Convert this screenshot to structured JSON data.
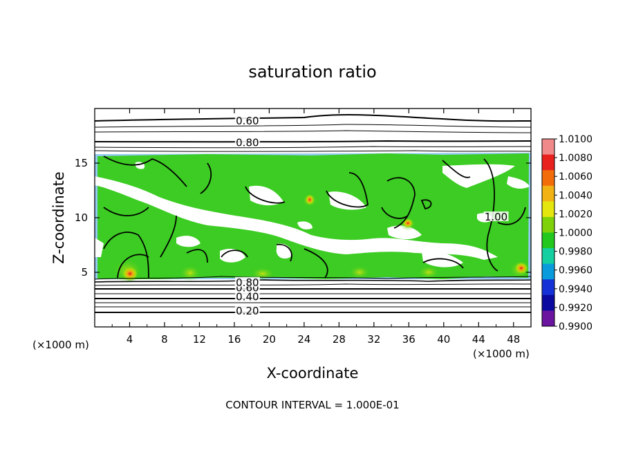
{
  "chart_data": {
    "type": "contour",
    "title": "saturation ratio",
    "xlabel": "X-coordinate",
    "ylabel": "Z-coordinate",
    "x_unit_left": "(×1000 m)",
    "x_unit_right": "(×1000 m)",
    "footer": "CONTOUR INTERVAL = 1.000E-01",
    "xlim": [
      0,
      50
    ],
    "ylim": [
      0,
      20
    ],
    "x_ticks": [
      {
        "value": 4,
        "label": "4"
      },
      {
        "value": 8,
        "label": "8"
      },
      {
        "value": 12,
        "label": "12"
      },
      {
        "value": 16,
        "label": "16"
      },
      {
        "value": 20,
        "label": "20"
      },
      {
        "value": 24,
        "label": "24"
      },
      {
        "value": 28,
        "label": "28"
      },
      {
        "value": 32,
        "label": "32"
      },
      {
        "value": 36,
        "label": "36"
      },
      {
        "value": 40,
        "label": "40"
      },
      {
        "value": 44,
        "label": "44"
      },
      {
        "value": 48,
        "label": "48"
      }
    ],
    "y_ticks": [
      {
        "value": 5,
        "label": "5"
      },
      {
        "value": 10,
        "label": "10"
      },
      {
        "value": 15,
        "label": "15"
      }
    ],
    "contour_labels": [
      {
        "text": "0.60",
        "x": 17.5,
        "z": 18.8
      },
      {
        "text": "0.80",
        "x": 17.5,
        "z": 16.8
      },
      {
        "text": "0.20",
        "x": 17.5,
        "z": 1.4
      },
      {
        "text": "0.40",
        "x": 17.5,
        "z": 2.7
      },
      {
        "text": "0.60",
        "x": 17.5,
        "z": 3.5
      },
      {
        "text": "0.80",
        "x": 17.5,
        "z": 4.0
      },
      {
        "text": "1.00",
        "x": 46.0,
        "z": 10.0
      }
    ],
    "upper_contours_z": [
      19.0,
      18.3,
      17.5,
      16.8,
      16.4,
      16.0
    ],
    "lower_contours_z": [
      1.4,
      2.0,
      2.4,
      2.7,
      3.1,
      3.5,
      3.8,
      4.0,
      4.2
    ],
    "colorbar": {
      "levels": [
        "1.0100",
        "1.0080",
        "1.0060",
        "1.0040",
        "1.0020",
        "1.0000",
        "0.9980",
        "0.9960",
        "0.9940",
        "0.9920",
        "0.9900"
      ],
      "colors": [
        "#f08a8a",
        "#e8201e",
        "#f26d0a",
        "#f0b214",
        "#e5e60e",
        "#7fd20a",
        "#22c81e",
        "#14d0a0",
        "#0a9bdc",
        "#1432d6",
        "#0a0aa0",
        "#6a14a0"
      ]
    },
    "field_description_colors": {
      "background": "#ffffff",
      "supersaturated": "#3ccc23",
      "near_saturation": "#a0e00a",
      "peak": "#e8201e"
    }
  }
}
